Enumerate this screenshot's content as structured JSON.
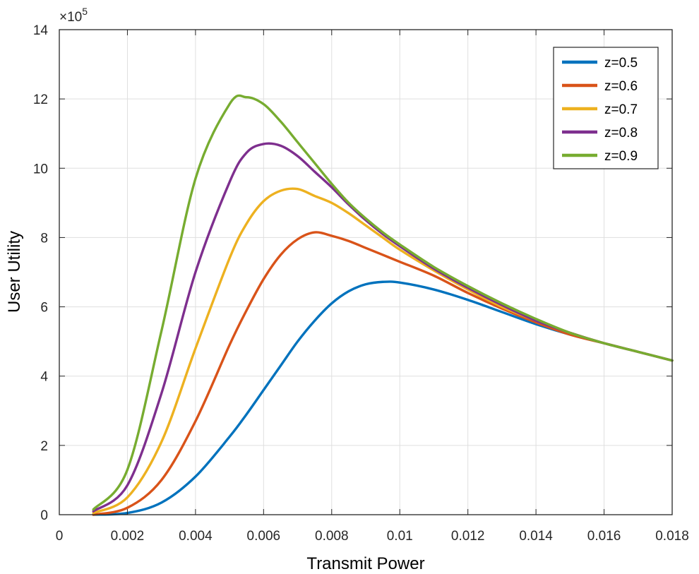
{
  "chart_data": {
    "type": "line",
    "title": "",
    "xlabel": "Transmit Power",
    "ylabel": "User Utility",
    "xlim": [
      0,
      0.018
    ],
    "ylim": [
      0,
      14
    ],
    "y_multiplier": {
      "prefix": "×10",
      "exponent": "5"
    },
    "xticks": [
      0,
      0.002,
      0.004,
      0.006,
      0.008,
      0.01,
      0.012,
      0.014,
      0.016,
      0.018
    ],
    "xtick_labels": [
      "0",
      "0.002",
      "0.004",
      "0.006",
      "0.008",
      "0.01",
      "0.012",
      "0.014",
      "0.016",
      "0.018"
    ],
    "yticks": [
      0,
      2,
      4,
      6,
      8,
      10,
      12,
      14
    ],
    "ytick_labels": [
      "0",
      "2",
      "4",
      "6",
      "8",
      "10",
      "12",
      "14"
    ],
    "grid": true,
    "legend_position": "top-right",
    "x": [
      0.001,
      0.002,
      0.003,
      0.004,
      0.005,
      0.0055,
      0.006,
      0.0065,
      0.007,
      0.0075,
      0.008,
      0.0085,
      0.009,
      0.0095,
      0.01,
      0.011,
      0.012,
      0.013,
      0.014,
      0.015,
      0.016,
      0.017,
      0.018
    ],
    "series": [
      {
        "name": "z=0.5",
        "color": "#0072BD",
        "values": [
          0.0,
          0.05,
          0.35,
          1.1,
          2.25,
          2.9,
          3.6,
          4.3,
          5.0,
          5.6,
          6.1,
          6.45,
          6.65,
          6.72,
          6.7,
          6.5,
          6.2,
          5.85,
          5.5,
          5.2,
          4.95,
          4.7,
          4.45
        ]
      },
      {
        "name": "z=0.6",
        "color": "#D95319",
        "values": [
          0.0,
          0.2,
          1.0,
          2.7,
          4.9,
          5.9,
          6.8,
          7.5,
          7.95,
          8.15,
          8.05,
          7.9,
          7.7,
          7.5,
          7.3,
          6.9,
          6.4,
          5.95,
          5.55,
          5.2,
          4.95,
          4.7,
          4.45
        ]
      },
      {
        "name": "z=0.7",
        "color": "#EDB120",
        "values": [
          0.05,
          0.5,
          2.1,
          4.8,
          7.4,
          8.4,
          9.05,
          9.35,
          9.4,
          9.2,
          9.0,
          8.7,
          8.35,
          8.0,
          7.65,
          7.05,
          6.5,
          6.0,
          5.6,
          5.25,
          4.95,
          4.7,
          4.45
        ]
      },
      {
        "name": "z=0.8",
        "color": "#7E2F8E",
        "values": [
          0.1,
          0.85,
          3.5,
          7.0,
          9.6,
          10.45,
          10.7,
          10.65,
          10.35,
          9.9,
          9.45,
          8.95,
          8.5,
          8.1,
          7.75,
          7.1,
          6.55,
          6.05,
          5.6,
          5.25,
          4.95,
          4.7,
          4.45
        ]
      },
      {
        "name": "z=0.9",
        "color": "#77AC30",
        "values": [
          0.15,
          1.3,
          5.3,
          9.7,
          11.85,
          12.05,
          11.85,
          11.35,
          10.75,
          10.15,
          9.55,
          9.0,
          8.55,
          8.15,
          7.8,
          7.15,
          6.6,
          6.1,
          5.65,
          5.25,
          4.95,
          4.7,
          4.45
        ]
      }
    ]
  }
}
